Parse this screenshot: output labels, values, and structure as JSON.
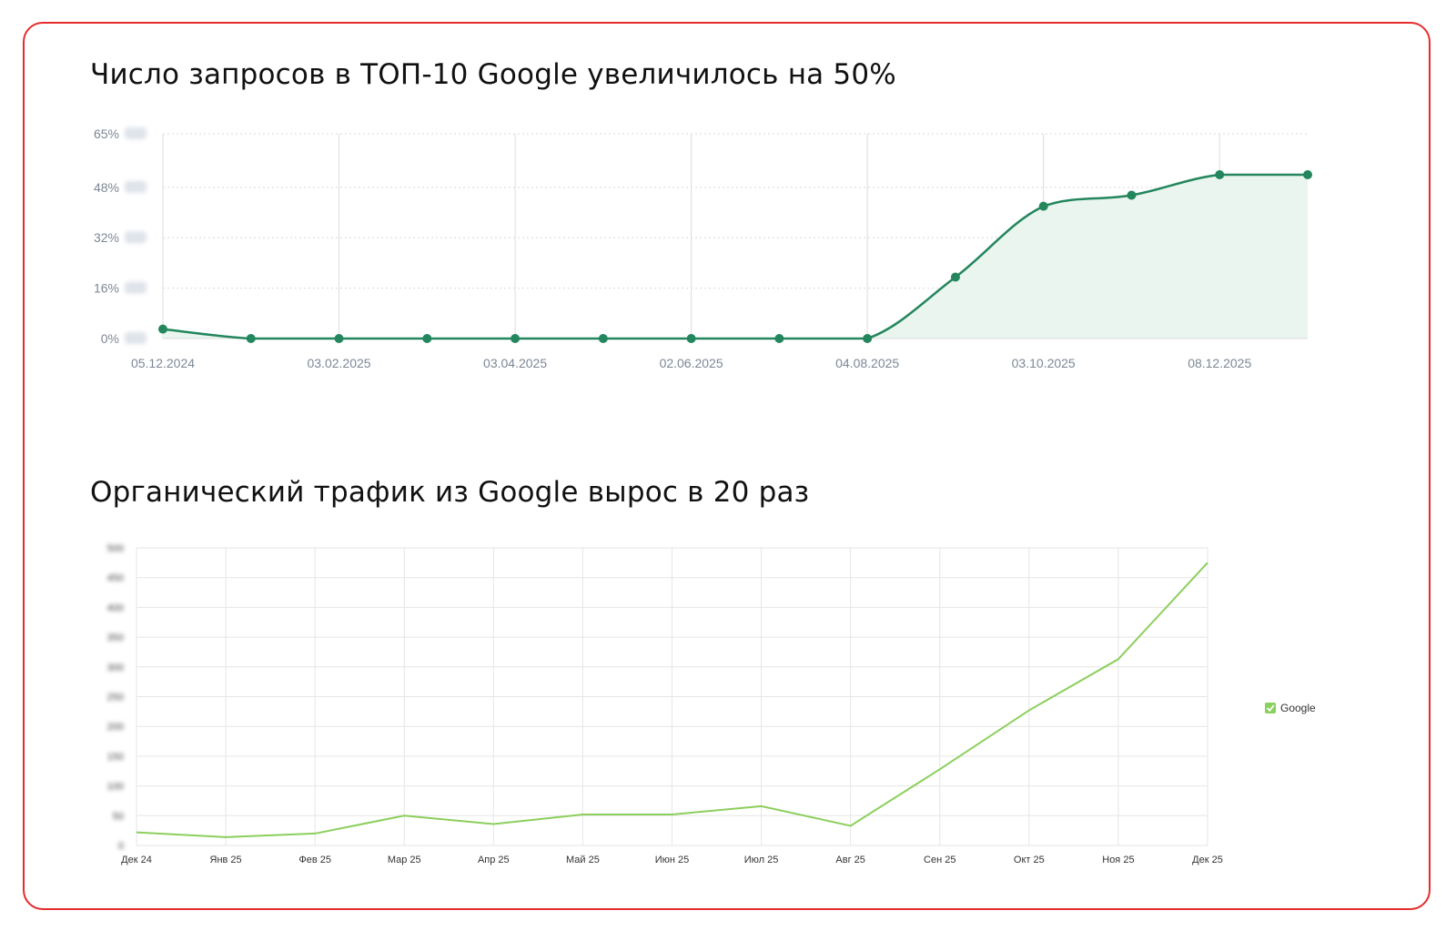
{
  "titles": {
    "chart1": "Число запросов в ТОП-10 Google увеличилось на 50%",
    "chart2": "Органический трафик из Google вырос в 20 раз"
  },
  "colors": {
    "border": "#e52c2c",
    "top10_line": "#23865d",
    "top10_fill": "#e9f5ee",
    "traffic_line": "#8bcf5c",
    "grid": "#e6e6e6"
  },
  "chart_data": [
    {
      "type": "area",
      "title": "Число запросов в ТОП-10 Google увеличилось на 50%",
      "x_ticks": [
        "05.12.2024",
        "03.02.2025",
        "03.04.2025",
        "02.06.2025",
        "04.08.2025",
        "03.10.2025",
        "08.12.2025"
      ],
      "y_ticks": [
        "0%",
        "16%",
        "32%",
        "48%",
        "65%"
      ],
      "ylim": [
        0,
        65
      ],
      "x": [
        "05.12.2024",
        "04.01.2025",
        "03.02.2025",
        "05.03.2025",
        "03.04.2025",
        "03.05.2025",
        "02.06.2025",
        "04.07.2025",
        "04.08.2025",
        "03.09.2025",
        "03.10.2025",
        "04.11.2025",
        "08.12.2025",
        "08.01.2026"
      ],
      "series": [
        {
          "values": [
            3,
            0,
            0,
            0,
            0,
            0,
            0,
            0,
            0,
            19.5,
            42,
            45.5,
            52,
            52
          ]
        }
      ],
      "grid": true
    },
    {
      "type": "line",
      "title": "Органический трафик из Google вырос в 20 раз",
      "categories": [
        "Дек 24",
        "Янв 25",
        "Фев 25",
        "Мар 25",
        "Апр 25",
        "Май 25",
        "Июн 25",
        "Июл 25",
        "Авг 25",
        "Сен 25",
        "Окт 25",
        "Ноя 25",
        "Дек 25"
      ],
      "y_ticks_blurred": [
        "0",
        "50",
        "100",
        "150",
        "200",
        "250",
        "300",
        "350",
        "400",
        "450",
        "500"
      ],
      "ylim": [
        0,
        500
      ],
      "series": [
        {
          "name": "Google",
          "values": [
            22,
            14,
            20,
            50,
            36,
            52,
            52,
            66,
            33,
            128,
            227,
            313,
            475
          ]
        }
      ],
      "legend": "right",
      "grid": true
    }
  ]
}
